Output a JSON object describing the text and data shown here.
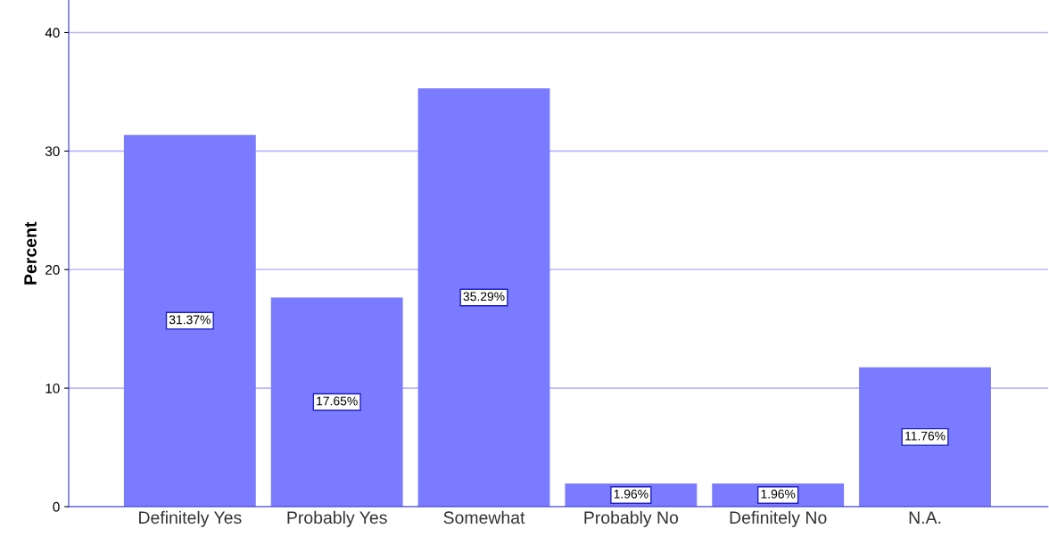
{
  "chart_data": {
    "type": "bar",
    "ylabel": "Percent",
    "categories": [
      "Definitely Yes",
      "Probably Yes",
      "Somewhat",
      "Probably No",
      "Definitely No",
      "N.A."
    ],
    "values": [
      31.37,
      17.65,
      35.29,
      1.96,
      1.96,
      11.76
    ],
    "value_labels": [
      "31.37%",
      "17.65%",
      "35.29%",
      "1.96%",
      "1.96%",
      "11.76%"
    ],
    "color": "#7b7bff",
    "ylim": [
      0,
      42.7
    ],
    "yticks": [
      0,
      10,
      20,
      30,
      40
    ],
    "grid": "y"
  }
}
